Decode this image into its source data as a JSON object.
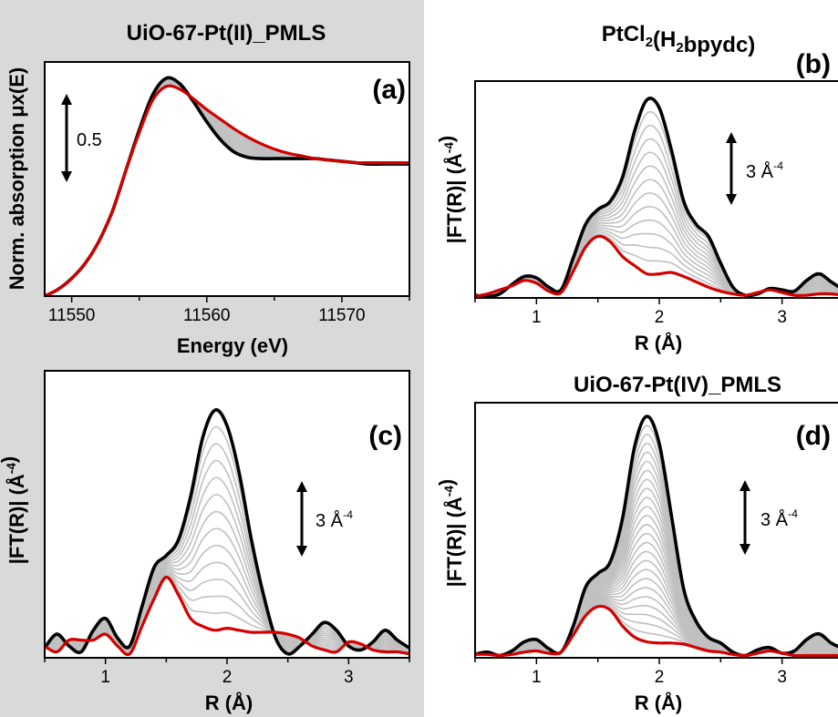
{
  "chart_data": [
    {
      "panel": "(a)",
      "type": "line",
      "title": "UiO-67-Pt(II)_PMLS",
      "xlabel": "Energy (eV)",
      "ylabel": "Norm. absorption μx(E)",
      "xlim": [
        11548,
        11575
      ],
      "xticks": [
        11550,
        11560,
        11570
      ],
      "scale_bar": "0.5",
      "n_intermediate": 12,
      "x": [
        11548,
        11549,
        11550,
        11551,
        11552,
        11553,
        11554,
        11555,
        11556,
        11557,
        11558,
        11559,
        11560,
        11561,
        11562,
        11563,
        11564,
        11565,
        11566,
        11567,
        11568,
        11569,
        11570,
        11571,
        11572,
        11573,
        11574,
        11575
      ],
      "series": [
        {
          "name": "first",
          "color": "#000000",
          "values": [
            0.0,
            0.05,
            0.13,
            0.24,
            0.4,
            0.62,
            0.92,
            1.22,
            1.48,
            1.6,
            1.56,
            1.43,
            1.28,
            1.15,
            1.06,
            1.02,
            1.01,
            1.01,
            1.01,
            1.01,
            1.01,
            1.0,
            0.99,
            0.98,
            0.97,
            0.97,
            0.97,
            0.97
          ]
        },
        {
          "name": "last",
          "color": "#d40000",
          "values": [
            0.0,
            0.05,
            0.13,
            0.24,
            0.4,
            0.62,
            0.92,
            1.2,
            1.44,
            1.54,
            1.52,
            1.45,
            1.37,
            1.3,
            1.23,
            1.17,
            1.12,
            1.08,
            1.05,
            1.03,
            1.01,
            1.0,
            0.99,
            0.98,
            0.98,
            0.98,
            0.98,
            0.98
          ]
        }
      ]
    },
    {
      "panel": "(b)",
      "type": "line",
      "title": "PtCl2(H2bpydc)",
      "xlabel": "R (Å)",
      "ylabel": "|FT(R)| (Å-4)",
      "xlim": [
        0.5,
        3.5
      ],
      "xticks": [
        1,
        2,
        3
      ],
      "scale_bar": "3 Å-4",
      "n_intermediate": 12,
      "x": [
        0.5,
        0.6,
        0.7,
        0.8,
        0.9,
        1.0,
        1.1,
        1.2,
        1.3,
        1.4,
        1.5,
        1.6,
        1.7,
        1.8,
        1.9,
        2.0,
        2.1,
        2.2,
        2.3,
        2.4,
        2.5,
        2.6,
        2.7,
        2.8,
        2.9,
        3.0,
        3.1,
        3.2,
        3.3,
        3.4,
        3.5
      ],
      "series": [
        {
          "name": "first",
          "color": "#000000",
          "values": [
            0.2,
            0.1,
            0.3,
            1.0,
            1.6,
            1.5,
            0.8,
            0.6,
            3.0,
            5.5,
            6.6,
            7.2,
            9.0,
            12.5,
            14.8,
            14.2,
            11.0,
            7.2,
            5.5,
            4.6,
            2.6,
            0.8,
            0.2,
            0.3,
            0.7,
            0.6,
            0.5,
            1.3,
            1.8,
            1.2,
            0.6
          ]
        },
        {
          "name": "last",
          "color": "#d40000",
          "values": [
            0.1,
            0.3,
            0.6,
            0.9,
            1.3,
            1.1,
            0.5,
            0.4,
            2.0,
            3.8,
            4.6,
            4.2,
            3.1,
            2.4,
            1.8,
            1.8,
            1.9,
            1.6,
            1.2,
            0.8,
            0.5,
            0.3,
            0.2,
            0.4,
            0.6,
            0.4,
            0.2,
            0.2,
            0.3,
            0.3,
            0.2
          ]
        }
      ]
    },
    {
      "panel": "(c)",
      "type": "line",
      "title": "",
      "xlabel": "R (Å)",
      "ylabel": "|FT(R)| (Å-4)",
      "xlim": [
        0.5,
        3.5
      ],
      "xticks": [
        1,
        2,
        3
      ],
      "scale_bar": "3 Å-4",
      "n_intermediate": 12,
      "x": [
        0.5,
        0.6,
        0.7,
        0.8,
        0.9,
        1.0,
        1.1,
        1.2,
        1.3,
        1.4,
        1.5,
        1.6,
        1.7,
        1.8,
        1.9,
        2.0,
        2.1,
        2.2,
        2.3,
        2.4,
        2.5,
        2.6,
        2.7,
        2.8,
        2.9,
        3.0,
        3.1,
        3.2,
        3.3,
        3.4,
        3.5
      ],
      "series": [
        {
          "name": "first",
          "color": "#000000",
          "values": [
            0.5,
            1.2,
            0.6,
            0.3,
            1.4,
            2.0,
            1.0,
            0.6,
            2.6,
            4.6,
            5.2,
            6.0,
            8.2,
            11.2,
            12.6,
            11.8,
            9.4,
            6.0,
            3.2,
            1.0,
            0.2,
            0.6,
            1.2,
            1.8,
            1.4,
            0.6,
            0.4,
            0.8,
            1.4,
            0.9,
            0.5
          ]
        },
        {
          "name": "last",
          "color": "#d40000",
          "values": [
            0.6,
            0.3,
            0.9,
            0.9,
            0.9,
            1.2,
            0.6,
            0.2,
            1.6,
            3.0,
            4.1,
            3.2,
            2.0,
            1.6,
            1.4,
            1.5,
            1.4,
            1.3,
            1.3,
            1.3,
            1.2,
            1.0,
            0.6,
            0.4,
            0.3,
            0.8,
            0.7,
            0.4,
            0.3,
            0.3,
            0.2
          ]
        }
      ]
    },
    {
      "panel": "(d)",
      "type": "line",
      "title": "UiO-67-Pt(IV)_PMLS",
      "xlabel": "R (Å)",
      "ylabel": "|FT(R)| (Å-4)",
      "xlim": [
        0.5,
        3.5
      ],
      "xticks": [
        1,
        2,
        3
      ],
      "scale_bar": "3 Å-4",
      "n_intermediate": 24,
      "x": [
        0.5,
        0.6,
        0.7,
        0.8,
        0.9,
        1.0,
        1.1,
        1.2,
        1.3,
        1.4,
        1.5,
        1.6,
        1.7,
        1.8,
        1.9,
        2.0,
        2.1,
        2.2,
        2.3,
        2.4,
        2.5,
        2.6,
        2.7,
        2.8,
        2.9,
        3.0,
        3.1,
        3.2,
        3.3,
        3.4,
        3.5
      ],
      "series": [
        {
          "name": "first",
          "color": "#000000",
          "values": [
            0.3,
            0.5,
            0.2,
            0.6,
            1.4,
            1.6,
            0.8,
            0.5,
            2.8,
            6.2,
            7.4,
            8.4,
            12.2,
            18.6,
            21.2,
            18.8,
            12.4,
            6.0,
            3.2,
            1.8,
            1.3,
            0.5,
            0.2,
            0.7,
            0.9,
            0.4,
            0.6,
            1.6,
            2.1,
            1.3,
            0.8
          ]
        },
        {
          "name": "last",
          "color": "#d40000",
          "values": [
            0.3,
            0.3,
            0.2,
            0.3,
            0.5,
            0.6,
            0.4,
            0.5,
            2.0,
            3.7,
            4.5,
            4.2,
            2.8,
            1.8,
            1.4,
            1.3,
            1.3,
            1.2,
            0.9,
            0.6,
            0.5,
            0.3,
            0.2,
            0.4,
            0.6,
            0.4,
            0.2,
            0.2,
            0.2,
            0.2,
            0.2
          ]
        }
      ]
    }
  ]
}
